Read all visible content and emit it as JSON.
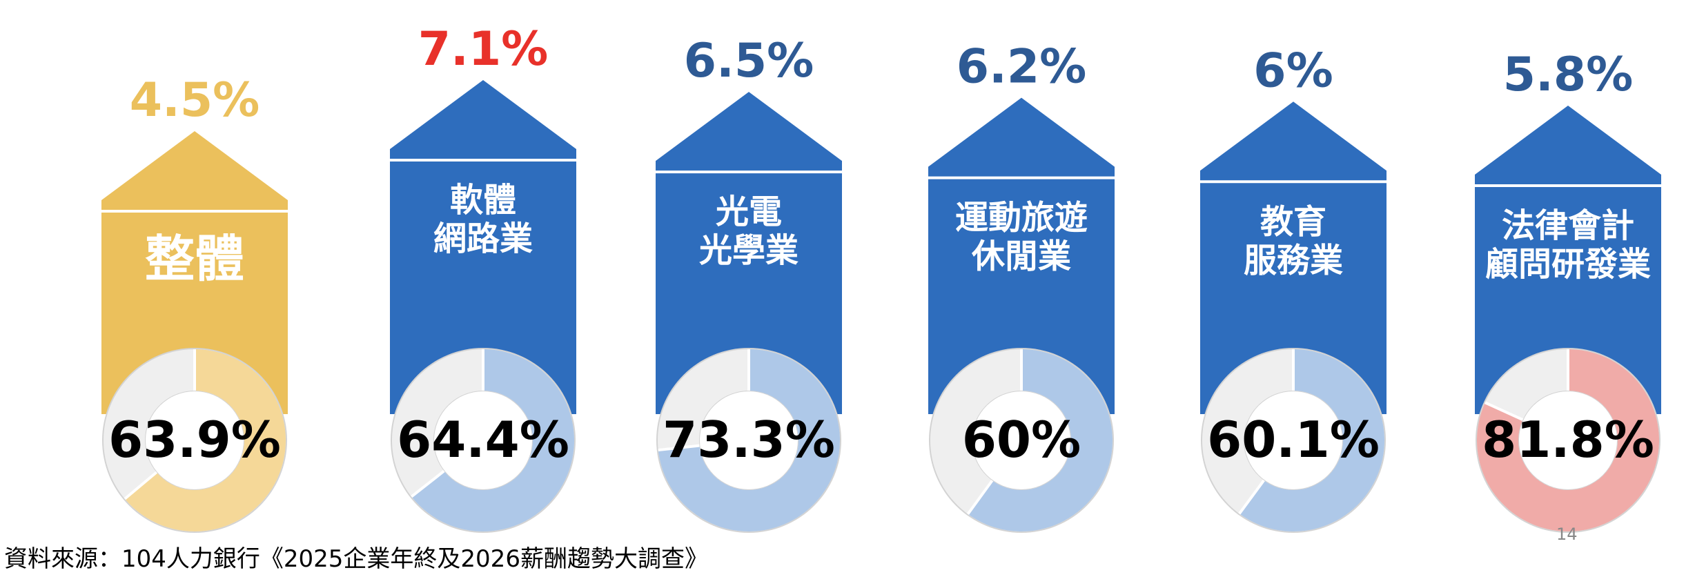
{
  "chart_data": {
    "type": "pie",
    "xlabel": "",
    "ylabel": "",
    "categories": [
      "整體",
      "軟體網路業",
      "光電光學業",
      "運動旅遊休閒業",
      "教育服務業",
      "法律會計顧問研發業"
    ],
    "series": [
      {
        "values": [
          4.5,
          7.1,
          6.5,
          6.2,
          6.0,
          5.8
        ],
        "value_labels": [
          "4.5%",
          "7.1%",
          "6.5%",
          "6.2%",
          "6%",
          "5.8%"
        ]
      },
      {
        "values": [
          63.9,
          64.4,
          73.3,
          60.0,
          60.1,
          81.8
        ],
        "value_labels": [
          "63.9%",
          "64.4%",
          "73.3%",
          "60%",
          "60.1%",
          "81.8%"
        ]
      }
    ],
    "items": [
      {
        "label_lines": [
          "整體"
        ],
        "top_value": "4.5%",
        "donut_value": 63.9,
        "donut_label": "63.9%",
        "arrow_color": "#EBC05C",
        "top_color": "#EBC05C",
        "fill_color": "#F5D898",
        "highlight": "overall"
      },
      {
        "label_lines": [
          "軟體",
          "網路業"
        ],
        "top_value": "7.1%",
        "donut_value": 64.4,
        "donut_label": "64.4%",
        "arrow_color": "#2E6DBD",
        "top_color": "#E8312A",
        "fill_color": "#AEC8E8",
        "highlight": "max"
      },
      {
        "label_lines": [
          "光電",
          "光學業"
        ],
        "top_value": "6.5%",
        "donut_value": 73.3,
        "donut_label": "73.3%",
        "arrow_color": "#2E6DBD",
        "top_color": "#2E5A94",
        "fill_color": "#AEC8E8"
      },
      {
        "label_lines": [
          "運動旅遊",
          "休閒業"
        ],
        "top_value": "6.2%",
        "donut_value": 60.0,
        "donut_label": "60%",
        "arrow_color": "#2E6DBD",
        "top_color": "#2E5A94",
        "fill_color": "#AEC8E8"
      },
      {
        "label_lines": [
          "教育",
          "服務業"
        ],
        "top_value": "6%",
        "donut_value": 60.1,
        "donut_label": "60.1%",
        "arrow_color": "#2E6DBD",
        "top_color": "#2E5A94",
        "fill_color": "#AEC8E8"
      },
      {
        "label_lines": [
          "法律會計",
          "顧問研發業"
        ],
        "top_value": "5.8%",
        "donut_value": 81.8,
        "donut_label": "81.8%",
        "arrow_color": "#2E6DBD",
        "top_color": "#2E5A94",
        "fill_color": "#F0ABA8",
        "highlight": "donut-max"
      }
    ],
    "donut_track_color": "#EFEFEF",
    "donut_border_color": "#D3D3D3"
  },
  "footer": {
    "source": "資料來源：104人力銀行《2025企業年終及2026薪酬趨勢大調查》",
    "page_number": "14"
  }
}
